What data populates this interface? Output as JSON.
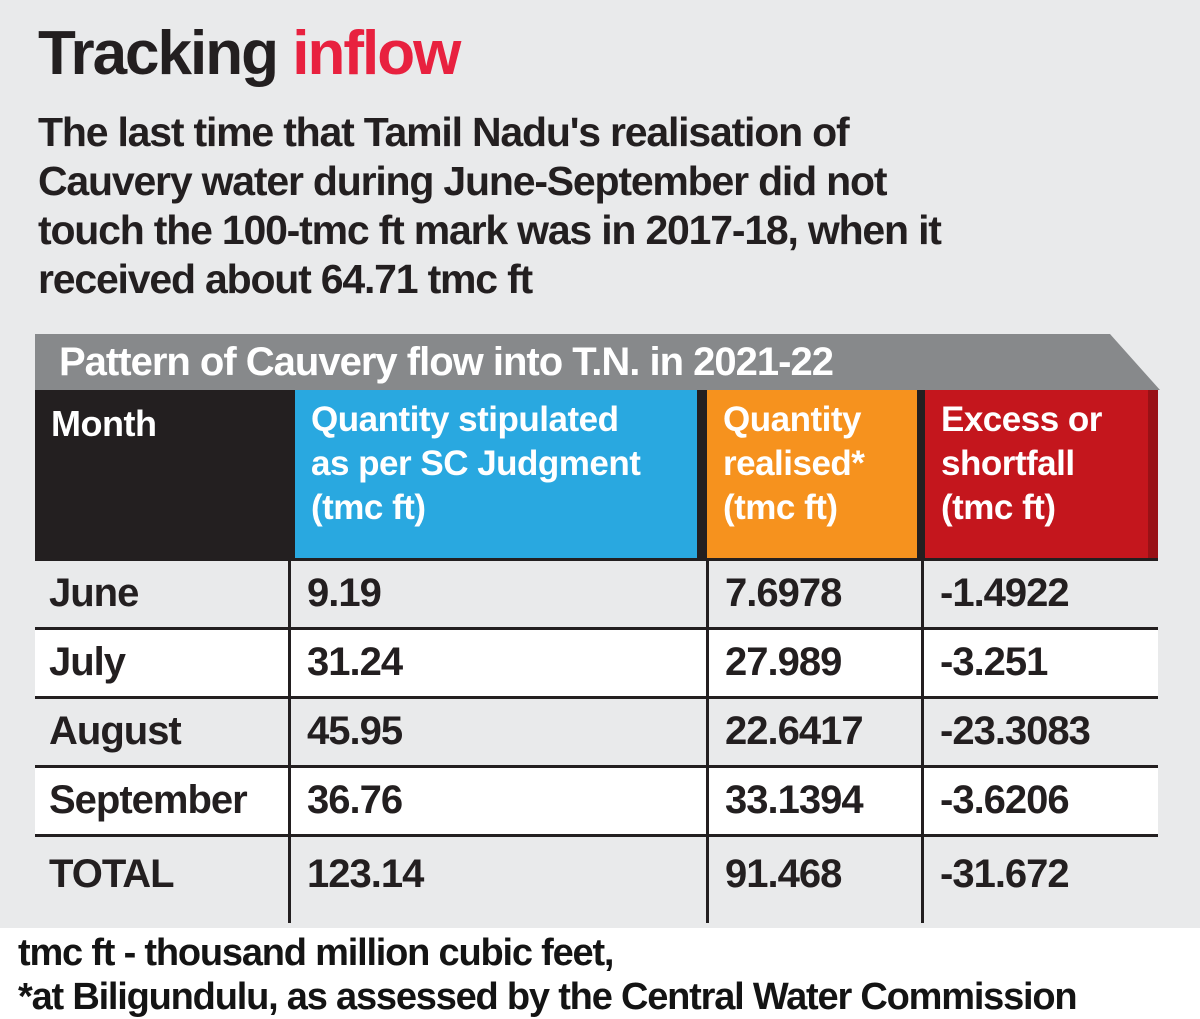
{
  "title": {
    "word_black": "Tracking",
    "word_red": "inflow"
  },
  "subtitle": {
    "lines": [
      "The last time that Tamil Nadu's realisation of",
      "Cauvery water during June-September did not",
      "touch the 100-tmc ft mark was in 2017-18, when it",
      "received about 64.71 tmc ft"
    ]
  },
  "banner": {
    "title": "Pattern of Cauvery flow into T.N. in 2021-22"
  },
  "table": {
    "header": [
      {
        "label": "Month"
      },
      {
        "label": "Quantity stipulated\nas per SC Judgment\n(tmc ft)"
      },
      {
        "label": "Quantity\nrealised*\n(tmc ft)"
      },
      {
        "label": "Excess or\nshortfall\n(tmc ft)"
      }
    ],
    "rows": [
      {
        "cells": [
          "June",
          "9.19",
          "7.6978",
          "-1.4922"
        ]
      },
      {
        "cells": [
          "July",
          "31.24",
          "27.989",
          "-3.251"
        ]
      },
      {
        "cells": [
          "August",
          "45.95",
          "22.6417",
          "-23.3083"
        ]
      },
      {
        "cells": [
          "September",
          "36.76",
          "33.1394",
          "-3.6206"
        ]
      },
      {
        "cells": [
          "TOTAL",
          "123.14",
          "91.468",
          "-31.672"
        ]
      }
    ]
  },
  "footnotes": [
    "tmc ft - thousand million cubic feet,",
    "*at Biligundulu, as assessed by the Central Water Commission"
  ],
  "colors": {
    "page_background": "#e9eaeb",
    "title_black": "#231f20",
    "title_red": "#e8213f",
    "banner_gray": "#87898b",
    "header_month_black": "#231f20",
    "header_blue": "#29a8e0",
    "header_orange": "#f6921e",
    "header_red": "#c4161d",
    "row_white": "#ffffff",
    "row_gray": "#e9eaeb",
    "border_black": "#231f20",
    "footer_background": "#ffffff"
  },
  "chart_data": {
    "type": "table",
    "title": "Pattern of Cauvery flow into T.N. in 2021-22",
    "columns": [
      "Month",
      "Quantity stipulated as per SC Judgment (tmc ft)",
      "Quantity realised* (tmc ft)",
      "Excess or shortfall (tmc ft)"
    ],
    "rows": [
      [
        "June",
        9.19,
        7.6978,
        -1.4922
      ],
      [
        "July",
        31.24,
        27.989,
        -3.251
      ],
      [
        "August",
        45.95,
        22.6417,
        -23.3083
      ],
      [
        "September",
        36.76,
        33.1394,
        -3.6206
      ],
      [
        "TOTAL",
        123.14,
        91.468,
        -31.672
      ]
    ],
    "units": "tmc ft (thousand million cubic feet)",
    "notes": [
      "tmc ft - thousand million cubic feet",
      "*at Biligundulu, as assessed by the Central Water Commission"
    ]
  }
}
